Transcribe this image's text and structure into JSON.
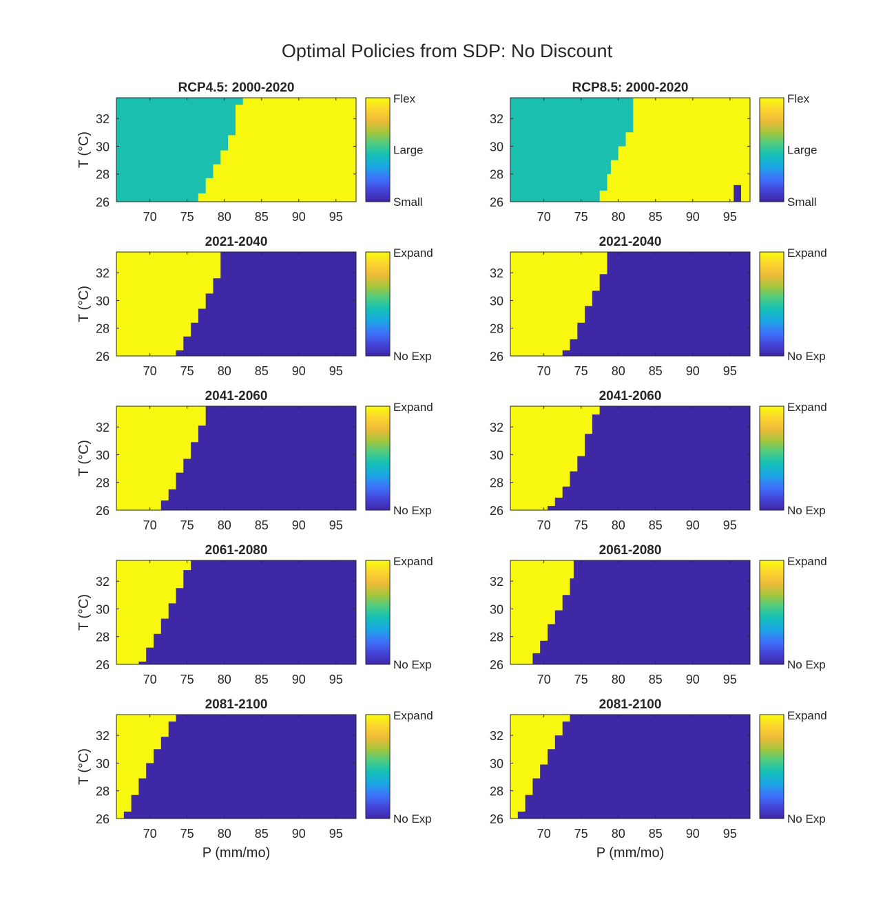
{
  "figure": {
    "title": "Optimal Policies from SDP: No Discount"
  },
  "colors": {
    "yellow": "#F7F70F",
    "teal": "#1BBFB0",
    "navy": "#3E28A6"
  },
  "colormap": [
    "#3E26A8",
    "#4544D9",
    "#3D73FA",
    "#1CA4E5",
    "#12BEB9",
    "#4BCB83",
    "#A6C53C",
    "#EDBA39",
    "#FCD52F",
    "#F9FB0E"
  ],
  "chart_data": [
    {
      "type": "heatmap",
      "panel": "RCP4.5 2000-2020",
      "title": "RCP4.5: 2000-2020",
      "ylabel": "T (°C)",
      "xlabel": "",
      "xlim": [
        65.5,
        97.7
      ],
      "ylim": [
        26,
        33.5
      ],
      "xticks": [
        "70",
        "75",
        "80",
        "85",
        "90",
        "95"
      ],
      "yticks": [
        "26",
        "28",
        "30",
        "32"
      ],
      "colorbar_ticks": [
        "Small",
        "Large",
        "Flex"
      ],
      "colors": [
        "#1BBFB0",
        "#F7F70F"
      ],
      "boundary": [
        [
          26,
          76.5
        ],
        [
          26.6,
          76.5
        ],
        [
          26.6,
          77.5
        ],
        [
          27.7,
          77.5
        ],
        [
          27.7,
          78.5
        ],
        [
          28.7,
          78.5
        ],
        [
          28.7,
          79.5
        ],
        [
          29.7,
          79.5
        ],
        [
          29.7,
          80.5
        ],
        [
          30.8,
          80.5
        ],
        [
          30.8,
          81.5
        ],
        [
          33.0,
          81.5
        ],
        [
          33.0,
          82.5
        ],
        [
          33.5,
          82.5
        ]
      ],
      "patches": []
    },
    {
      "type": "heatmap",
      "panel": "RCP8.5 2000-2020",
      "title": "RCP8.5: 2000-2020",
      "ylabel": "",
      "xlabel": "",
      "xlim": [
        65.5,
        97.7
      ],
      "ylim": [
        26,
        33.5
      ],
      "xticks": [
        "70",
        "75",
        "80",
        "85",
        "90",
        "95"
      ],
      "yticks": [
        "26",
        "28",
        "30",
        "32"
      ],
      "colorbar_ticks": [
        "Small",
        "Large",
        "Flex"
      ],
      "colors": [
        "#1BBFB0",
        "#F7F70F"
      ],
      "boundary": [
        [
          26,
          77.5
        ],
        [
          26.8,
          77.5
        ],
        [
          26.8,
          78.5
        ],
        [
          28.0,
          78.5
        ],
        [
          28.0,
          79.0
        ],
        [
          29.0,
          79.0
        ],
        [
          29.0,
          80.0
        ],
        [
          30.0,
          80.0
        ],
        [
          30.0,
          81.0
        ],
        [
          31.0,
          81.0
        ],
        [
          31.0,
          82.0
        ],
        [
          33.5,
          82.0
        ]
      ],
      "patches": [
        {
          "x": [
            95.5,
            96.5
          ],
          "y": [
            26,
            27.2
          ],
          "color": "#3E28A6"
        }
      ]
    },
    {
      "type": "heatmap",
      "panel": "RCP4.5 2021-2040",
      "title": "2021-2040",
      "ylabel": "T (°C)",
      "xlabel": "",
      "xlim": [
        65.5,
        97.7
      ],
      "ylim": [
        26,
        33.5
      ],
      "xticks": [
        "70",
        "75",
        "80",
        "85",
        "90",
        "95"
      ],
      "yticks": [
        "26",
        "28",
        "30",
        "32"
      ],
      "colorbar_ticks": [
        "No Exp",
        "Expand"
      ],
      "colors": [
        "#F7F70F",
        "#3E28A6"
      ],
      "boundary": [
        [
          26,
          73.5
        ],
        [
          26.4,
          73.5
        ],
        [
          26.4,
          74.5
        ],
        [
          27.4,
          74.5
        ],
        [
          27.4,
          75.5
        ],
        [
          28.4,
          75.5
        ],
        [
          28.4,
          76.5
        ],
        [
          29.4,
          76.5
        ],
        [
          29.4,
          77.5
        ],
        [
          30.5,
          77.5
        ],
        [
          30.5,
          78.5
        ],
        [
          31.6,
          78.5
        ],
        [
          31.6,
          79.5
        ],
        [
          33.5,
          79.5
        ]
      ],
      "patches": []
    },
    {
      "type": "heatmap",
      "panel": "RCP8.5 2021-2040",
      "title": "2021-2040",
      "ylabel": "",
      "xlabel": "",
      "xlim": [
        65.5,
        97.7
      ],
      "ylim": [
        26,
        33.5
      ],
      "xticks": [
        "70",
        "75",
        "80",
        "85",
        "90",
        "95"
      ],
      "yticks": [
        "26",
        "28",
        "30",
        "32"
      ],
      "colorbar_ticks": [
        "No Exp",
        "Expand"
      ],
      "colors": [
        "#F7F70F",
        "#3E28A6"
      ],
      "boundary": [
        [
          26,
          72.5
        ],
        [
          26.4,
          72.5
        ],
        [
          26.4,
          73.5
        ],
        [
          27.2,
          73.5
        ],
        [
          27.2,
          74.5
        ],
        [
          28.4,
          74.5
        ],
        [
          28.4,
          75.5
        ],
        [
          29.6,
          75.5
        ],
        [
          29.6,
          76.5
        ],
        [
          30.7,
          76.5
        ],
        [
          30.7,
          77.5
        ],
        [
          31.9,
          77.5
        ],
        [
          31.9,
          78.5
        ],
        [
          33.5,
          78.5
        ]
      ],
      "patches": []
    },
    {
      "type": "heatmap",
      "panel": "RCP4.5 2041-2060",
      "title": "2041-2060",
      "ylabel": "T (°C)",
      "xlabel": "",
      "xlim": [
        65.5,
        97.7
      ],
      "ylim": [
        26,
        33.5
      ],
      "xticks": [
        "70",
        "75",
        "80",
        "85",
        "90",
        "95"
      ],
      "yticks": [
        "26",
        "28",
        "30",
        "32"
      ],
      "colorbar_ticks": [
        "No Exp",
        "Expand"
      ],
      "colors": [
        "#F7F70F",
        "#3E28A6"
      ],
      "boundary": [
        [
          26,
          71.5
        ],
        [
          26.7,
          71.5
        ],
        [
          26.7,
          72.5
        ],
        [
          27.5,
          72.5
        ],
        [
          27.5,
          73.5
        ],
        [
          28.7,
          73.5
        ],
        [
          28.7,
          74.5
        ],
        [
          29.7,
          74.5
        ],
        [
          29.7,
          75.5
        ],
        [
          30.9,
          75.5
        ],
        [
          30.9,
          76.5
        ],
        [
          32.1,
          76.5
        ],
        [
          32.1,
          77.5
        ],
        [
          33.5,
          77.5
        ]
      ],
      "patches": []
    },
    {
      "type": "heatmap",
      "panel": "RCP8.5 2041-2060",
      "title": "2041-2060",
      "ylabel": "",
      "xlabel": "",
      "xlim": [
        65.5,
        97.7
      ],
      "ylim": [
        26,
        33.5
      ],
      "xticks": [
        "70",
        "75",
        "80",
        "85",
        "90",
        "95"
      ],
      "yticks": [
        "26",
        "28",
        "30",
        "32"
      ],
      "colorbar_ticks": [
        "No Exp",
        "Expand"
      ],
      "colors": [
        "#F7F70F",
        "#3E28A6"
      ],
      "boundary": [
        [
          26,
          70.5
        ],
        [
          26.3,
          70.5
        ],
        [
          26.3,
          71.5
        ],
        [
          26.9,
          71.5
        ],
        [
          26.9,
          72.5
        ],
        [
          27.7,
          72.5
        ],
        [
          27.7,
          73.5
        ],
        [
          28.8,
          73.5
        ],
        [
          28.8,
          74.5
        ],
        [
          29.9,
          74.5
        ],
        [
          29.9,
          75.5
        ],
        [
          31.5,
          75.5
        ],
        [
          31.5,
          76.5
        ],
        [
          32.9,
          76.5
        ],
        [
          32.9,
          77.5
        ],
        [
          33.5,
          77.5
        ]
      ],
      "patches": []
    },
    {
      "type": "heatmap",
      "panel": "RCP4.5 2061-2080",
      "title": "2061-2080",
      "ylabel": "T (°C)",
      "xlabel": "",
      "xlim": [
        65.5,
        97.7
      ],
      "ylim": [
        26,
        33.5
      ],
      "xticks": [
        "70",
        "75",
        "80",
        "85",
        "90",
        "95"
      ],
      "yticks": [
        "26",
        "28",
        "30",
        "32"
      ],
      "colorbar_ticks": [
        "No Exp",
        "Expand"
      ],
      "colors": [
        "#F7F70F",
        "#3E28A6"
      ],
      "boundary": [
        [
          26,
          68.5
        ],
        [
          26.2,
          68.5
        ],
        [
          26.2,
          69.5
        ],
        [
          27.2,
          69.5
        ],
        [
          27.2,
          70.5
        ],
        [
          28.2,
          70.5
        ],
        [
          28.2,
          71.5
        ],
        [
          29.3,
          71.5
        ],
        [
          29.3,
          72.5
        ],
        [
          30.4,
          72.5
        ],
        [
          30.4,
          73.5
        ],
        [
          31.5,
          73.5
        ],
        [
          31.5,
          74.5
        ],
        [
          32.8,
          74.5
        ],
        [
          32.8,
          75.5
        ],
        [
          33.5,
          75.5
        ]
      ],
      "patches": []
    },
    {
      "type": "heatmap",
      "panel": "RCP8.5 2061-2080",
      "title": "2061-2080",
      "ylabel": "",
      "xlabel": "",
      "xlim": [
        65.5,
        97.7
      ],
      "ylim": [
        26,
        33.5
      ],
      "xticks": [
        "70",
        "75",
        "80",
        "85",
        "90",
        "95"
      ],
      "yticks": [
        "26",
        "28",
        "30",
        "32"
      ],
      "colorbar_ticks": [
        "No Exp",
        "Expand"
      ],
      "colors": [
        "#F7F70F",
        "#3E28A6"
      ],
      "boundary": [
        [
          26,
          68.5
        ],
        [
          26.8,
          68.5
        ],
        [
          26.8,
          69.5
        ],
        [
          27.7,
          69.5
        ],
        [
          27.7,
          70.5
        ],
        [
          28.9,
          70.5
        ],
        [
          28.9,
          71.5
        ],
        [
          29.9,
          71.5
        ],
        [
          29.9,
          72.5
        ],
        [
          31.0,
          72.5
        ],
        [
          31.0,
          73.5
        ],
        [
          32.2,
          73.5
        ],
        [
          32.2,
          74.0
        ],
        [
          33.5,
          74.0
        ]
      ],
      "patches": []
    },
    {
      "type": "heatmap",
      "panel": "RCP4.5 2081-2100",
      "title": "2081-2100",
      "ylabel": "T (°C)",
      "xlabel": "P (mm/mo)",
      "xlim": [
        65.5,
        97.7
      ],
      "ylim": [
        26,
        33.5
      ],
      "xticks": [
        "70",
        "75",
        "80",
        "85",
        "90",
        "95"
      ],
      "yticks": [
        "26",
        "28",
        "30",
        "32"
      ],
      "colorbar_ticks": [
        "No Exp",
        "Expand"
      ],
      "colors": [
        "#F7F70F",
        "#3E28A6"
      ],
      "boundary": [
        [
          26,
          66.5
        ],
        [
          26.5,
          66.5
        ],
        [
          26.5,
          67.5
        ],
        [
          27.7,
          67.5
        ],
        [
          27.7,
          68.5
        ],
        [
          28.9,
          68.5
        ],
        [
          28.9,
          69.5
        ],
        [
          30.0,
          69.5
        ],
        [
          30.0,
          70.5
        ],
        [
          31.0,
          70.5
        ],
        [
          31.0,
          71.5
        ],
        [
          31.9,
          71.5
        ],
        [
          31.9,
          72.5
        ],
        [
          33.0,
          72.5
        ],
        [
          33.0,
          73.5
        ],
        [
          33.5,
          73.5
        ]
      ],
      "patches": []
    },
    {
      "type": "heatmap",
      "panel": "RCP8.5 2081-2100",
      "title": "2081-2100",
      "ylabel": "",
      "xlabel": "P (mm/mo)",
      "xlim": [
        65.5,
        97.7
      ],
      "ylim": [
        26,
        33.5
      ],
      "xticks": [
        "70",
        "75",
        "80",
        "85",
        "90",
        "95"
      ],
      "yticks": [
        "26",
        "28",
        "30",
        "32"
      ],
      "colorbar_ticks": [
        "No Exp",
        "Expand"
      ],
      "colors": [
        "#F7F70F",
        "#3E28A6"
      ],
      "boundary": [
        [
          26,
          66.5
        ],
        [
          26.5,
          66.5
        ],
        [
          26.5,
          67.5
        ],
        [
          27.7,
          67.5
        ],
        [
          27.7,
          68.5
        ],
        [
          28.9,
          68.5
        ],
        [
          28.9,
          69.5
        ],
        [
          29.9,
          69.5
        ],
        [
          29.9,
          70.5
        ],
        [
          31.0,
          70.5
        ],
        [
          31.0,
          71.5
        ],
        [
          32.0,
          71.5
        ],
        [
          32.0,
          72.5
        ],
        [
          33.0,
          72.5
        ],
        [
          33.0,
          73.5
        ],
        [
          33.5,
          73.5
        ]
      ],
      "patches": []
    }
  ]
}
